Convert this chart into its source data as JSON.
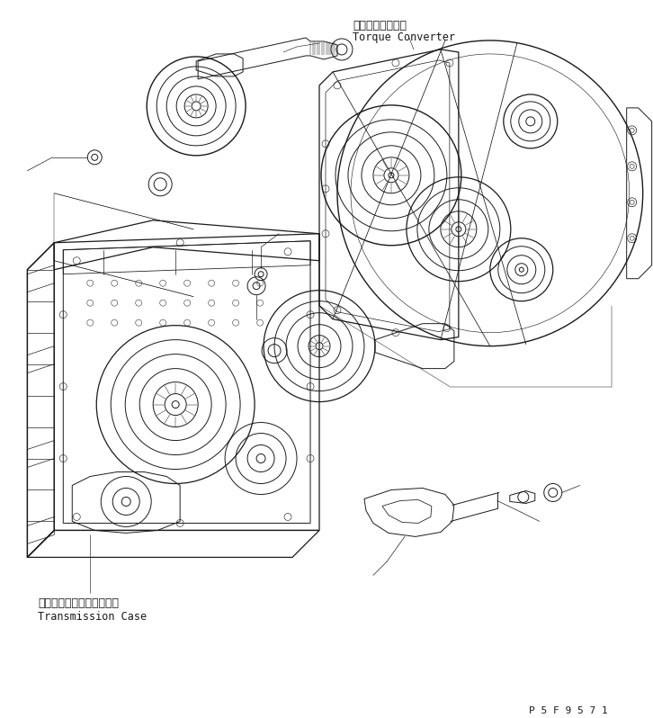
{
  "title_jp": "トルクコンバータ",
  "title_en": "Torque Converter",
  "label_transmission_jp": "トランスミッションケース",
  "label_transmission_en": "Transmission Case",
  "part_number": "P 5 F 9 5 7 1",
  "bg_color": "#ffffff",
  "line_color": "#1a1a1a",
  "line_width": 0.7,
  "fig_width": 7.26,
  "fig_height": 7.98
}
